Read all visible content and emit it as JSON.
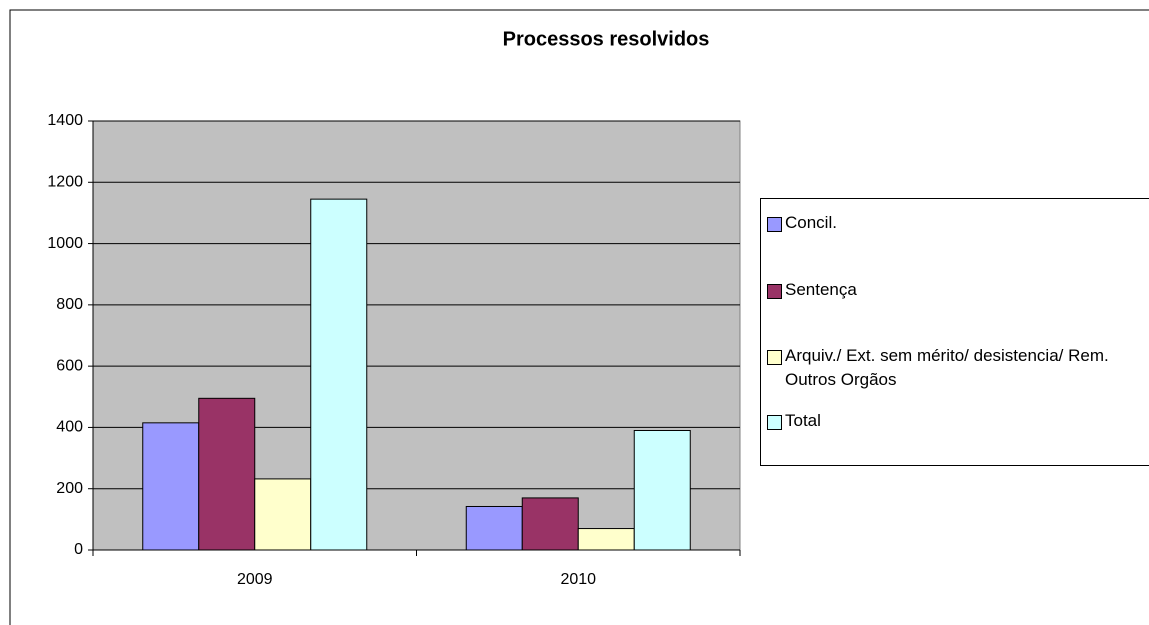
{
  "chart_data": {
    "type": "bar",
    "title": "Processos resolvidos",
    "categories": [
      "2009",
      "2010"
    ],
    "series": [
      {
        "name": "Concil.",
        "color": "#9999ff",
        "values": [
          415,
          142
        ]
      },
      {
        "name": "Sentença",
        "color": "#993366",
        "values": [
          495,
          170
        ]
      },
      {
        "name": "Arquiv./ Ext. sem mérito/ desistencia/ Rem. Outros Orgãos",
        "color": "#ffffcc",
        "values": [
          232,
          70
        ]
      },
      {
        "name": "Total",
        "color": "#ccffff",
        "values": [
          1145,
          390
        ]
      }
    ],
    "ylim": [
      0,
      1400
    ],
    "yticks": [
      0,
      200,
      400,
      600,
      800,
      1000,
      1200,
      1400
    ],
    "grid": true,
    "legend": "right"
  }
}
